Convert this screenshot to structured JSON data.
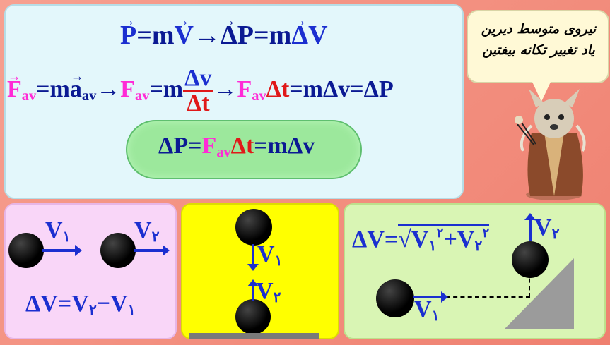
{
  "bubble": {
    "line1": "نیروی متوسط دیرین",
    "line2": "یاد تغییر تکانه بیفتین"
  },
  "eq1": {
    "P": "P",
    "eqm": "=m",
    "V": "V",
    "arrow": "→",
    "dP": "ΔP",
    "eqm2": "=m",
    "dV": "ΔV"
  },
  "eq2": {
    "F": "F",
    "av": "av",
    "eqm": "=m",
    "a": "a",
    "av2": "av",
    "arrow1": "→",
    "F2": "F",
    "av3": "av",
    "eqm2": "=m",
    "num": "Δv",
    "den": "Δt",
    "arrow2": "→",
    "F3": "F",
    "av4": "av",
    "dt": "Δt",
    "eq3": "=mΔv",
    "eq4": "=ΔP"
  },
  "cloud": {
    "dP": "ΔP=",
    "F": "F",
    "av": "av",
    "dt": "Δt",
    "rest": "=mΔv"
  },
  "pink": {
    "v1": "V",
    "v1sub": "۱",
    "v2": "V",
    "v2sub": "۲",
    "formula": "ΔV=V",
    "f_sub2": "۲",
    "minus": "−V",
    "f_sub1": "۱"
  },
  "yellow": {
    "v1": "V",
    "v1sub": "۱",
    "v2": "V",
    "v2sub": "۲"
  },
  "green": {
    "formula_lhs": "ΔV=",
    "radical": "√",
    "v1": "V",
    "s1": "۱",
    "p1": "۲",
    "plus": "+V",
    "s2": "۲",
    "p2": "۲",
    "v2": "V",
    "v2sub": "۲",
    "v1b": "V",
    "v1bsub": "۱"
  },
  "colors": {
    "blue": "#1b2fd0",
    "pink": "#ff2bd6",
    "red": "#e01919",
    "cloud": "#9ce89c"
  }
}
